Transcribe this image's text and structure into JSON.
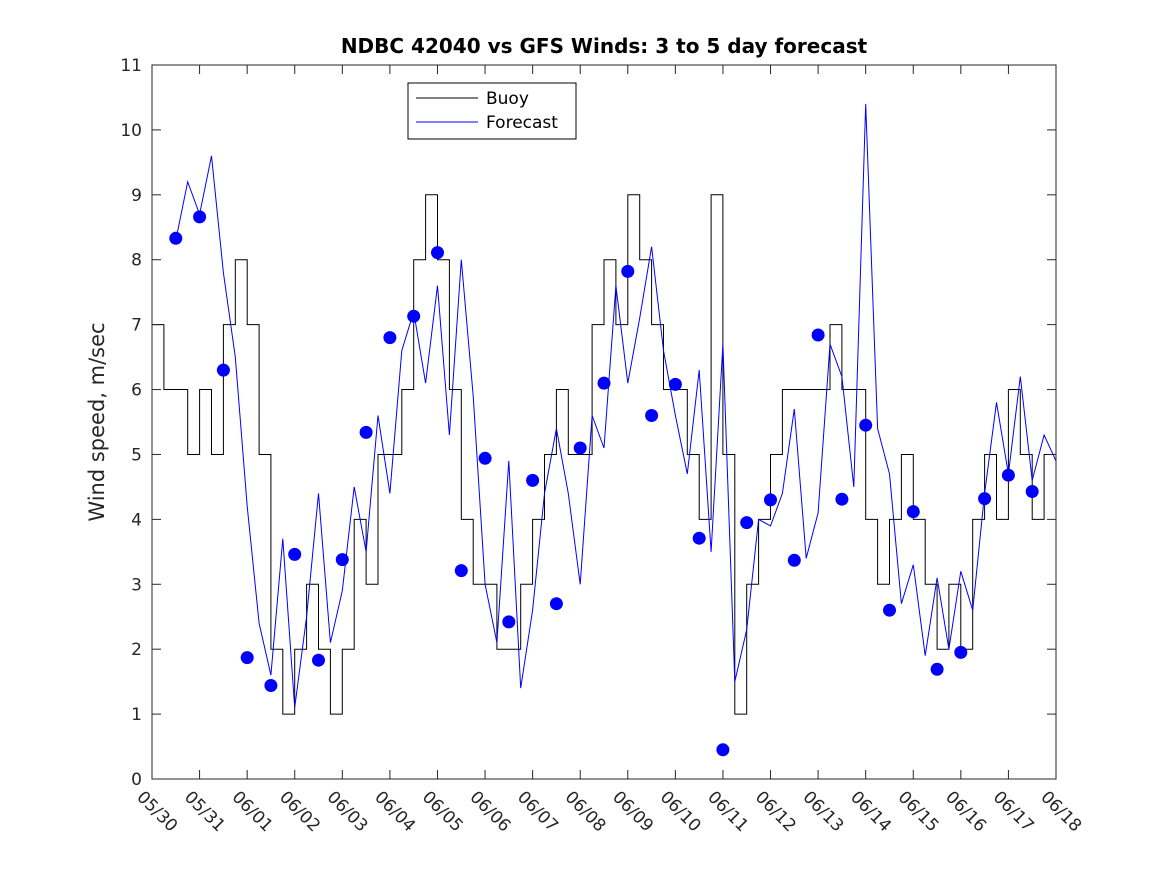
{
  "chart_data": {
    "type": "line",
    "title": "NDBC 42040 vs GFS Winds: 3 to 5 day forecast",
    "xlabel": "",
    "ylabel": "Wind speed, m/sec",
    "x_ticks": [
      "05/30",
      "05/31",
      "06/01",
      "06/02",
      "06/03",
      "06/04",
      "06/05",
      "06/06",
      "06/07",
      "06/08",
      "06/09",
      "06/10",
      "06/11",
      "06/12",
      "06/13",
      "06/14",
      "06/15",
      "06/16",
      "06/17",
      "06/18"
    ],
    "xlim": [
      "05/30",
      "06/18"
    ],
    "ylim": [
      0,
      11
    ],
    "y_ticks": [
      0,
      1,
      2,
      3,
      4,
      5,
      6,
      7,
      8,
      9,
      10,
      11
    ],
    "grid": false,
    "legend_position": "top-center",
    "colors": {
      "buoy": "#000000",
      "forecast": "#0000ff"
    },
    "series": [
      {
        "name": "Buoy",
        "style": "stairs",
        "x": [
          "05/30 00:00",
          "05/30 06:00",
          "05/30 12:00",
          "05/30 18:00",
          "05/31 00:00",
          "05/31 06:00",
          "05/31 12:00",
          "05/31 18:00",
          "06/01 00:00",
          "06/01 06:00",
          "06/01 12:00",
          "06/01 18:00",
          "06/02 00:00",
          "06/02 06:00",
          "06/02 12:00",
          "06/02 18:00",
          "06/03 00:00",
          "06/03 06:00",
          "06/03 12:00",
          "06/03 18:00",
          "06/04 00:00",
          "06/04 06:00",
          "06/04 12:00",
          "06/04 18:00",
          "06/05 00:00",
          "06/05 06:00",
          "06/05 12:00",
          "06/05 18:00",
          "06/06 00:00",
          "06/06 06:00",
          "06/06 12:00",
          "06/06 18:00",
          "06/07 00:00",
          "06/07 06:00",
          "06/07 12:00",
          "06/07 18:00",
          "06/08 00:00",
          "06/08 06:00",
          "06/08 12:00",
          "06/08 18:00",
          "06/09 00:00",
          "06/09 06:00",
          "06/09 12:00",
          "06/09 18:00",
          "06/10 00:00",
          "06/10 06:00",
          "06/10 12:00",
          "06/10 18:00",
          "06/11 00:00",
          "06/11 06:00",
          "06/11 12:00",
          "06/11 18:00",
          "06/12 00:00",
          "06/12 06:00",
          "06/12 12:00",
          "06/12 18:00",
          "06/13 00:00",
          "06/13 06:00",
          "06/13 12:00",
          "06/13 18:00",
          "06/14 00:00",
          "06/14 06:00",
          "06/14 12:00",
          "06/14 18:00",
          "06/15 00:00",
          "06/15 06:00",
          "06/15 12:00",
          "06/15 18:00",
          "06/16 00:00",
          "06/16 06:00",
          "06/16 12:00",
          "06/16 18:00",
          "06/17 00:00",
          "06/17 06:00",
          "06/17 12:00",
          "06/17 18:00",
          "06/18 00:00"
        ],
        "values": [
          7,
          6,
          6,
          5,
          6,
          5,
          7,
          8,
          7,
          5,
          2,
          1,
          2,
          3,
          2,
          1,
          2,
          4,
          3,
          5,
          5,
          6,
          8,
          9,
          8,
          6,
          4,
          3,
          3,
          2,
          2,
          3,
          4,
          5,
          6,
          5,
          5,
          7,
          8,
          7,
          9,
          8,
          7,
          6,
          6,
          5,
          4,
          9,
          5,
          1,
          3,
          4,
          5,
          6,
          6,
          6,
          6,
          7,
          6,
          6,
          4,
          3,
          4,
          5,
          4,
          3,
          2,
          3,
          2,
          4,
          5,
          4,
          6,
          5,
          4,
          5,
          5
        ]
      },
      {
        "name": "Forecast",
        "style": "line",
        "x": [
          "05/30 12:00",
          "05/30 18:00",
          "05/31 00:00",
          "05/31 06:00",
          "05/31 12:00",
          "05/31 18:00",
          "06/01 00:00",
          "06/01 06:00",
          "06/01 12:00",
          "06/01 18:00",
          "06/02 00:00",
          "06/02 06:00",
          "06/02 12:00",
          "06/02 18:00",
          "06/03 00:00",
          "06/03 06:00",
          "06/03 12:00",
          "06/03 18:00",
          "06/04 00:00",
          "06/04 06:00",
          "06/04 12:00",
          "06/04 18:00",
          "06/05 00:00",
          "06/05 06:00",
          "06/05 12:00",
          "06/05 18:00",
          "06/06 00:00",
          "06/06 06:00",
          "06/06 12:00",
          "06/06 18:00",
          "06/07 00:00",
          "06/07 06:00",
          "06/07 12:00",
          "06/07 18:00",
          "06/08 00:00",
          "06/08 06:00",
          "06/08 12:00",
          "06/08 18:00",
          "06/09 00:00",
          "06/09 06:00",
          "06/09 12:00",
          "06/09 18:00",
          "06/10 00:00",
          "06/10 06:00",
          "06/10 12:00",
          "06/10 18:00",
          "06/11 00:00",
          "06/11 06:00",
          "06/11 12:00",
          "06/11 18:00",
          "06/12 00:00",
          "06/12 06:00",
          "06/12 12:00",
          "06/12 18:00",
          "06/13 00:00",
          "06/13 06:00",
          "06/13 12:00",
          "06/13 18:00",
          "06/14 00:00",
          "06/14 06:00",
          "06/14 12:00",
          "06/14 18:00",
          "06/15 00:00",
          "06/15 06:00",
          "06/15 12:00",
          "06/15 18:00",
          "06/16 00:00",
          "06/16 06:00",
          "06/16 12:00",
          "06/16 18:00",
          "06/17 00:00",
          "06/17 06:00",
          "06/17 12:00",
          "06/17 18:00",
          "06/18 00:00"
        ],
        "values": [
          8.3,
          9.2,
          8.7,
          9.6,
          7.8,
          6.5,
          4.2,
          2.4,
          1.6,
          3.7,
          1.1,
          2.5,
          4.4,
          2.1,
          2.9,
          4.5,
          3.5,
          5.6,
          4.4,
          6.6,
          7.2,
          6.1,
          7.6,
          5.3,
          8.0,
          5.9,
          3.0,
          2.1,
          4.9,
          1.4,
          2.6,
          4.4,
          5.4,
          4.4,
          3.0,
          5.6,
          5.1,
          7.6,
          6.1,
          7.1,
          8.2,
          6.6,
          5.6,
          4.7,
          6.3,
          3.5,
          6.7,
          1.5,
          2.3,
          4.0,
          3.9,
          4.4,
          5.7,
          3.4,
          4.1,
          6.7,
          6.2,
          4.5,
          10.4,
          5.4,
          4.7,
          2.7,
          3.3,
          1.9,
          3.1,
          2.0,
          3.2,
          2.6,
          4.4,
          5.8,
          4.7,
          6.2,
          4.6,
          5.3,
          4.9
        ]
      },
      {
        "name": "",
        "style": "markers",
        "x": [
          "05/30 12:00",
          "05/31 00:00",
          "05/31 12:00",
          "06/01 00:00",
          "06/01 12:00",
          "06/02 00:00",
          "06/02 12:00",
          "06/03 00:00",
          "06/03 12:00",
          "06/04 00:00",
          "06/04 12:00",
          "06/05 00:00",
          "06/05 12:00",
          "06/06 00:00",
          "06/06 12:00",
          "06/07 00:00",
          "06/07 12:00",
          "06/08 00:00",
          "06/08 12:00",
          "06/09 00:00",
          "06/09 12:00",
          "06/10 00:00",
          "06/10 12:00",
          "06/11 00:00",
          "06/11 12:00",
          "06/12 00:00",
          "06/12 12:00",
          "06/13 00:00",
          "06/13 12:00",
          "06/14 00:00",
          "06/14 12:00",
          "06/15 00:00",
          "06/15 12:00",
          "06/16 00:00",
          "06/16 12:00",
          "06/17 00:00",
          "06/17 12:00"
        ],
        "values": [
          8.33,
          8.66,
          6.3,
          1.87,
          1.44,
          3.46,
          1.83,
          3.38,
          5.34,
          6.8,
          7.13,
          8.11,
          3.21,
          4.94,
          2.42,
          4.6,
          2.7,
          5.1,
          6.1,
          7.82,
          5.6,
          6.08,
          3.71,
          0.45,
          3.95,
          4.3,
          3.37,
          6.84,
          4.31,
          5.45,
          2.6,
          4.12,
          1.69,
          1.95,
          4.32,
          4.68,
          4.43
        ]
      }
    ]
  }
}
